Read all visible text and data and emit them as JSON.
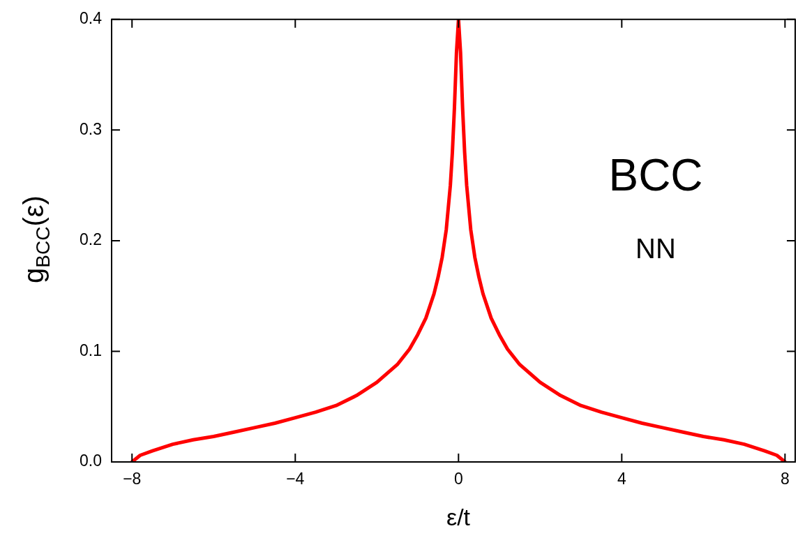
{
  "chart_data": {
    "type": "line",
    "xlabel": "ε/t",
    "ylabel": "g$_{BCC}$(ε)",
    "annotations": [
      "BCC",
      "NN"
    ],
    "x": [
      -8,
      -7.8,
      -7.5,
      -7,
      -6.5,
      -6,
      -5.5,
      -5,
      -4.5,
      -4,
      -3.5,
      -3,
      -2.5,
      -2,
      -1.5,
      -1.2,
      -1,
      -0.8,
      -0.6,
      -0.5,
      -0.4,
      -0.3,
      -0.2,
      -0.15,
      -0.1,
      -0.05,
      0,
      0.05,
      0.1,
      0.15,
      0.2,
      0.3,
      0.4,
      0.5,
      0.6,
      0.8,
      1,
      1.2,
      1.5,
      2,
      2.5,
      3,
      3.5,
      4,
      4.5,
      5,
      5.5,
      6,
      6.5,
      7,
      7.5,
      7.8,
      8
    ],
    "series": [
      {
        "color": "#ff0000",
        "values": [
          0,
          0.006,
          0.01,
          0.016,
          0.02,
          0.023,
          0.027,
          0.031,
          0.035,
          0.04,
          0.045,
          0.051,
          0.06,
          0.072,
          0.088,
          0.102,
          0.115,
          0.13,
          0.152,
          0.167,
          0.185,
          0.21,
          0.25,
          0.28,
          0.32,
          0.37,
          0.4,
          0.37,
          0.32,
          0.28,
          0.25,
          0.21,
          0.185,
          0.167,
          0.152,
          0.13,
          0.115,
          0.102,
          0.088,
          0.072,
          0.06,
          0.051,
          0.045,
          0.04,
          0.035,
          0.031,
          0.027,
          0.023,
          0.02,
          0.016,
          0.01,
          0.006,
          0
        ]
      }
    ],
    "xlim": [
      -8.5,
      8.25
    ],
    "xticks": [
      -8,
      -4,
      0,
      4,
      8
    ],
    "ylim": [
      0,
      0.4
    ],
    "yticks": [
      {
        "value": 0,
        "label": "0.0"
      },
      0.1,
      0.2,
      0.3,
      0.4
    ],
    "grid": false,
    "legend": false,
    "marker": "none",
    "line_style": "solid"
  }
}
